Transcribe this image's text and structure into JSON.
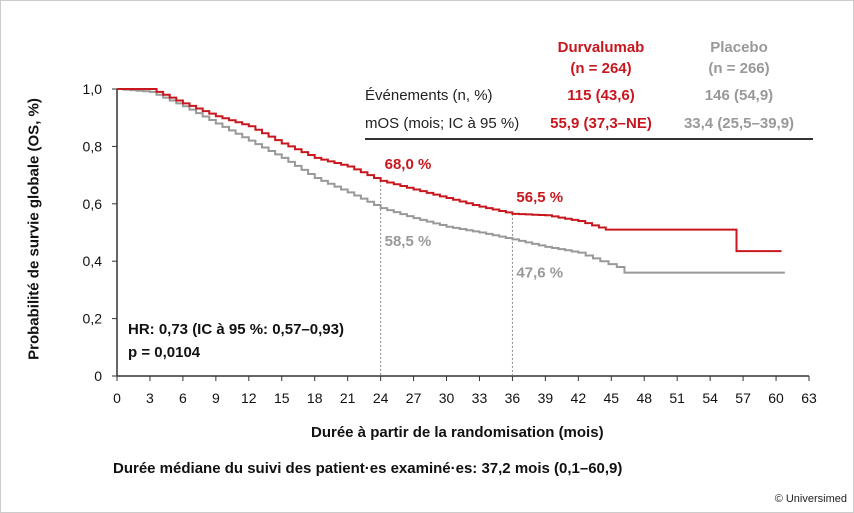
{
  "chart_data": {
    "type": "line",
    "subtype": "kaplan-meier",
    "xlabel": "Durée à partir de la randomisation (mois)",
    "ylabel": "Probabilité de survie globale (OS, %)",
    "xlim": [
      0,
      63
    ],
    "ylim": [
      0,
      1
    ],
    "xticks": [
      "0",
      "3",
      "6",
      "9",
      "12",
      "15",
      "18",
      "21",
      "24",
      "27",
      "30",
      "33",
      "36",
      "39",
      "42",
      "45",
      "48",
      "51",
      "54",
      "57",
      "60",
      "63"
    ],
    "yticks": [
      "0",
      "0,2",
      "0,4",
      "0,6",
      "0,8",
      "1,0"
    ],
    "grid": false,
    "series": [
      {
        "name": "Durvalumab",
        "color": "#c8171e",
        "points": [
          [
            0,
            1
          ],
          [
            3,
            1
          ],
          [
            6,
            0.95
          ],
          [
            9,
            0.905
          ],
          [
            12,
            0.87
          ],
          [
            15,
            0.81
          ],
          [
            18,
            0.76
          ],
          [
            21,
            0.73
          ],
          [
            24,
            0.68
          ],
          [
            27,
            0.65
          ],
          [
            30,
            0.62
          ],
          [
            33,
            0.59
          ],
          [
            36,
            0.565
          ],
          [
            39,
            0.56
          ],
          [
            42,
            0.54
          ],
          [
            44.5,
            0.51
          ],
          [
            56.4,
            0.51
          ],
          [
            56.4,
            0.435
          ],
          [
            60.5,
            0.435
          ]
        ]
      },
      {
        "name": "Placebo",
        "color": "#999999",
        "points": [
          [
            0,
            1
          ],
          [
            3,
            0.99
          ],
          [
            6,
            0.94
          ],
          [
            9,
            0.88
          ],
          [
            12,
            0.82
          ],
          [
            15,
            0.76
          ],
          [
            18,
            0.69
          ],
          [
            21,
            0.64
          ],
          [
            24,
            0.585
          ],
          [
            27,
            0.55
          ],
          [
            30,
            0.52
          ],
          [
            33,
            0.5
          ],
          [
            36,
            0.476
          ],
          [
            39,
            0.45
          ],
          [
            42,
            0.43
          ],
          [
            44,
            0.4
          ],
          [
            45.5,
            0.38
          ],
          [
            46.2,
            0.36
          ],
          [
            60.8,
            0.36
          ]
        ]
      }
    ],
    "annotations": [
      {
        "text": "68,0 %",
        "x": 24,
        "y": 0.68,
        "series": "Durvalumab"
      },
      {
        "text": "58,5 %",
        "x": 24,
        "y": 0.585,
        "series": "Placebo"
      },
      {
        "text": "56,5 %",
        "x": 36,
        "y": 0.565,
        "series": "Durvalumab"
      },
      {
        "text": "47,6 %",
        "x": 36,
        "y": 0.476,
        "series": "Placebo"
      }
    ],
    "table": {
      "headers": [
        [
          "Durvalumab",
          "(n = 264)"
        ],
        [
          "Placebo",
          "(n = 266)"
        ]
      ],
      "rows": [
        {
          "label": "Événements (n, %)",
          "durvalumab": "115 (43,6)",
          "placebo": "146 (54,9)"
        },
        {
          "label": "mOS (mois; IC à 95 %)",
          "durvalumab": "55,9 (37,3–NE)",
          "placebo": "33,4 (25,5–39,9)"
        }
      ]
    },
    "stats": {
      "hr": "HR: 0,73 (IC à 95 %: 0,57–0,93)",
      "p": "p = 0,0104"
    }
  },
  "footnote": "Durée médiane du suivi des patient·es examiné·es: 37,2 mois (0,1–60,9)",
  "copyright": "© Universimed"
}
